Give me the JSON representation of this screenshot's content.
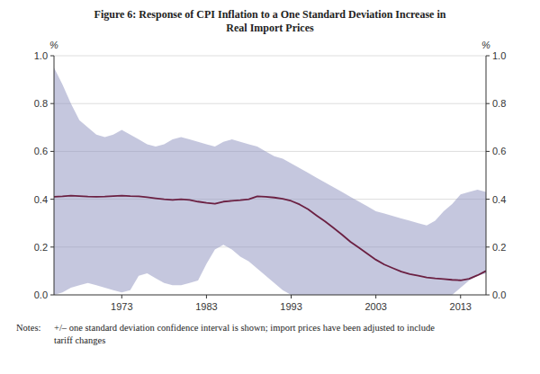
{
  "chart_data": {
    "type": "line",
    "title": "Figure 6: Response of CPI Inflation to a One Standard Deviation Increase in\nReal Import Prices",
    "ylabel": "%",
    "y2label": "%",
    "annotations": [
      "Notes:",
      "+/– one standard deviation confidence interval is shown; import prices have been adjusted to include\ntariff changes"
    ],
    "x": [
      1965,
      1966,
      1967,
      1968,
      1969,
      1970,
      1971,
      1972,
      1973,
      1974,
      1975,
      1976,
      1977,
      1978,
      1979,
      1980,
      1981,
      1982,
      1983,
      1984,
      1985,
      1986,
      1987,
      1988,
      1989,
      1990,
      1991,
      1992,
      1993,
      1994,
      1995,
      1996,
      1997,
      1998,
      1999,
      2000,
      2001,
      2002,
      2003,
      2004,
      2005,
      2006,
      2007,
      2008,
      2009,
      2010,
      2011,
      2012,
      2013,
      2014,
      2015,
      2016
    ],
    "xlim": [
      1965,
      2016
    ],
    "xticks": [
      1973,
      1983,
      1993,
      2003,
      2013
    ],
    "ylim": [
      0,
      1.0
    ],
    "yticks": [
      {
        "value": 0,
        "label": "0.0"
      },
      0.2,
      0.4,
      0.6,
      0.8,
      {
        "value": 1.0,
        "label": "1.0"
      }
    ],
    "y2lim": [
      0,
      1.0
    ],
    "y2ticks": [
      {
        "value": 0,
        "label": "0.0"
      },
      0.2,
      0.4,
      0.6,
      0.8,
      {
        "value": 1.0,
        "label": "1.0"
      }
    ],
    "grid": true,
    "series": [
      {
        "type": "area",
        "color": "#8c8fbe",
        "upper": [
          0.95,
          0.88,
          0.8,
          0.73,
          0.7,
          0.67,
          0.66,
          0.67,
          0.69,
          0.67,
          0.65,
          0.63,
          0.62,
          0.63,
          0.65,
          0.66,
          0.65,
          0.64,
          0.63,
          0.62,
          0.64,
          0.65,
          0.64,
          0.63,
          0.62,
          0.6,
          0.58,
          0.57,
          0.55,
          0.53,
          0.51,
          0.49,
          0.47,
          0.45,
          0.43,
          0.41,
          0.39,
          0.37,
          0.35,
          0.34,
          0.33,
          0.32,
          0.31,
          0.3,
          0.29,
          0.31,
          0.35,
          0.38,
          0.42,
          0.43,
          0.44,
          0.43
        ],
        "lower": [
          0.0,
          0.01,
          0.03,
          0.04,
          0.05,
          0.04,
          0.03,
          0.02,
          0.01,
          0.02,
          0.08,
          0.09,
          0.07,
          0.05,
          0.04,
          0.04,
          0.05,
          0.06,
          0.13,
          0.19,
          0.21,
          0.19,
          0.16,
          0.14,
          0.11,
          0.08,
          0.05,
          0.02,
          0.0,
          0.0,
          0.0,
          0.0,
          0.0,
          0.0,
          0.0,
          0.0,
          0.0,
          0.0,
          0.0,
          0.0,
          0.0,
          0.0,
          0.0,
          0.0,
          0.0,
          0.0,
          0.0,
          0.0,
          0.03,
          0.06,
          0.08,
          0.09
        ]
      },
      {
        "type": "line",
        "color": "#6b2042",
        "values": [
          0.41,
          0.412,
          0.415,
          0.413,
          0.411,
          0.41,
          0.411,
          0.413,
          0.415,
          0.413,
          0.412,
          0.408,
          0.404,
          0.4,
          0.397,
          0.4,
          0.397,
          0.39,
          0.385,
          0.381,
          0.39,
          0.393,
          0.396,
          0.4,
          0.412,
          0.41,
          0.407,
          0.402,
          0.393,
          0.378,
          0.358,
          0.332,
          0.307,
          0.28,
          0.252,
          0.222,
          0.197,
          0.172,
          0.147,
          0.127,
          0.112,
          0.097,
          0.087,
          0.08,
          0.073,
          0.069,
          0.066,
          0.063,
          0.061,
          0.067,
          0.082,
          0.1
        ]
      }
    ]
  }
}
